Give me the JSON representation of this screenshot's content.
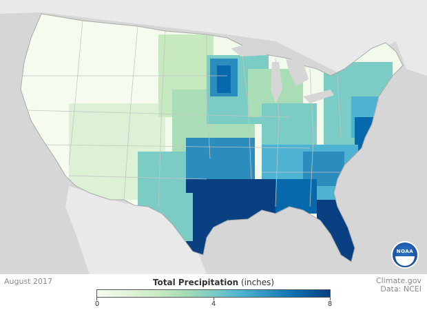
{
  "map": {
    "date": "August 2017",
    "title": "Total Precipitation",
    "units": "(inches)",
    "credit_line1": "Climate.gov",
    "credit_line2": "Data: NCEI",
    "logo_text": "NOAA",
    "legend_ticks": [
      "0",
      "4",
      "8"
    ],
    "legend_range": [
      0,
      8
    ],
    "colors": {
      "background": "#d6d6d6",
      "land": "#ffffff",
      "water": "#d6d6d6",
      "scale_low": "#f7fcf0",
      "scale_mid": "#7bccc4",
      "scale_high": "#084081",
      "state_border": "#bfbfbf"
    }
  }
}
